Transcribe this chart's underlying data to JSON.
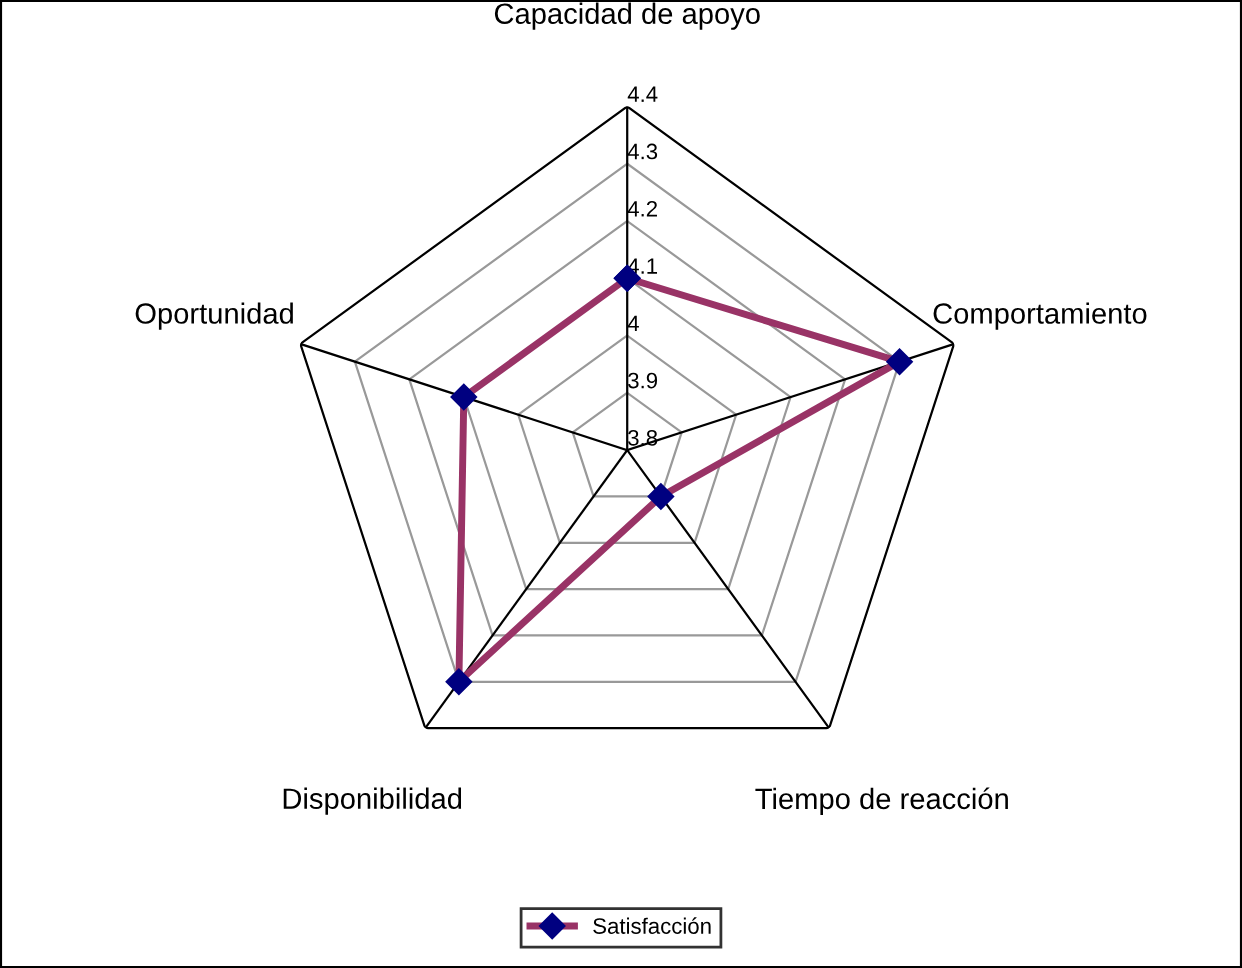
{
  "chart_data": {
    "type": "radar",
    "categories": [
      "Capacidad de apoyo",
      "Comportamiento",
      "Tiempo de reacción",
      "Disponibilidad",
      "Oportunidad"
    ],
    "series": [
      {
        "name": "Satisfacción",
        "color": "#993366",
        "values": [
          4.1,
          4.3,
          3.9,
          4.3,
          4.1
        ]
      }
    ],
    "ylim": [
      3.8,
      4.4
    ],
    "yticks": [
      3.8,
      3.9,
      4,
      4.1,
      4.2,
      4.3,
      4.4
    ],
    "grid": true,
    "legend": "bottom",
    "marker": "diamond",
    "line_style": "solid"
  }
}
